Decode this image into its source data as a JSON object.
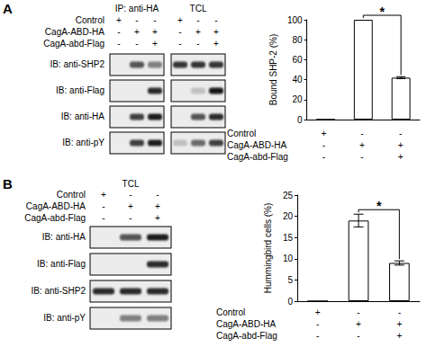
{
  "panels": [
    {
      "letter": "A",
      "blot": {
        "groups": [
          "IP: anti-HA",
          "TCL"
        ],
        "conditions": [
          {
            "label": "Control",
            "marks": [
              [
                "+",
                "-",
                "-"
              ],
              [
                "+",
                "-",
                "-"
              ]
            ]
          },
          {
            "label": "CagA-ABD-HA",
            "marks": [
              [
                "-",
                "+",
                "+"
              ],
              [
                "-",
                "+",
                "+"
              ]
            ]
          },
          {
            "label": "CagA-abd-Flag",
            "marks": [
              [
                "-",
                "-",
                "+"
              ],
              [
                "-",
                "-",
                "+"
              ]
            ]
          }
        ],
        "rows": [
          {
            "label": "IB: anti-SHP2",
            "lanes": [
              [
                0,
                0.7,
                0.5
              ],
              [
                0.85,
                0.85,
                0.85
              ]
            ]
          },
          {
            "label": "IB: anti-Flag",
            "lanes": [
              [
                0,
                0,
                0.9
              ],
              [
                0,
                0.2,
                1
              ]
            ]
          },
          {
            "label": "IB: anti-HA",
            "lanes": [
              [
                0,
                0.8,
                0.95
              ],
              [
                0,
                0.7,
                0.9
              ]
            ]
          },
          {
            "label": "IB: anti-pY",
            "lanes": [
              [
                0,
                0.8,
                0.95
              ],
              [
                0.2,
                0.6,
                0.8
              ]
            ]
          }
        ]
      }
    },
    {
      "letter": "B",
      "blot": {
        "groups": [
          "TCL"
        ],
        "conditions": [
          {
            "label": "Control",
            "marks": [
              [
                "+",
                "-",
                "-"
              ]
            ]
          },
          {
            "label": "CagA-ABD-HA",
            "marks": [
              [
                "-",
                "+",
                "+"
              ]
            ]
          },
          {
            "label": "CagA-abd-Flag",
            "marks": [
              [
                "-",
                "-",
                "+"
              ]
            ]
          }
        ],
        "rows": [
          {
            "label": "IB: anti-HA",
            "lanes": [
              [
                0,
                0.7,
                0.95
              ]
            ]
          },
          {
            "label": "IB: anti-Flag",
            "lanes": [
              [
                0,
                0,
                0.9
              ]
            ]
          },
          {
            "label": "IB: anti-SHP2",
            "lanes": [
              [
                0.9,
                0.9,
                0.9
              ]
            ]
          },
          {
            "label": "IB: anti-pY",
            "lanes": [
              [
                0,
                0.5,
                0.5
              ]
            ]
          }
        ]
      }
    }
  ],
  "chart_data": [
    {
      "type": "bar",
      "y_label": "Bound SHP-2 (%)",
      "categories": [
        null,
        null,
        null
      ],
      "values": [
        0,
        100,
        42
      ],
      "errors": [
        0,
        0,
        1
      ],
      "ylim": [
        0,
        100
      ],
      "yticks": [
        0,
        20,
        40,
        60,
        80,
        100
      ],
      "color": "#ffffff",
      "grid": false,
      "tick_labels": "y",
      "significance": "*",
      "conditions": [
        {
          "label": "Control",
          "marks": [
            "+",
            "-",
            "-"
          ]
        },
        {
          "label": "CagA-ABD-HA",
          "marks": [
            "-",
            "+",
            "+"
          ]
        },
        {
          "label": "CagA-abd-Flag",
          "marks": [
            "-",
            "-",
            "+"
          ]
        }
      ]
    },
    {
      "type": "bar",
      "y_label": "Hummingbird cells (%)",
      "categories": [
        null,
        null,
        null
      ],
      "values": [
        0,
        19,
        9
      ],
      "errors": [
        0,
        1.5,
        0.5
      ],
      "ylim": [
        0,
        25
      ],
      "yticks": [
        0,
        5,
        10,
        15,
        20,
        25
      ],
      "color": "#ffffff",
      "grid": false,
      "tick_labels": "y",
      "significance": "*",
      "conditions": [
        {
          "label": "Control",
          "marks": [
            "+",
            "-",
            "-"
          ]
        },
        {
          "label": "CagA-ABD-HA",
          "marks": [
            "-",
            "+",
            "+"
          ]
        },
        {
          "label": "CagA-abd-Flag",
          "marks": [
            "-",
            "-",
            "+"
          ]
        }
      ]
    }
  ]
}
